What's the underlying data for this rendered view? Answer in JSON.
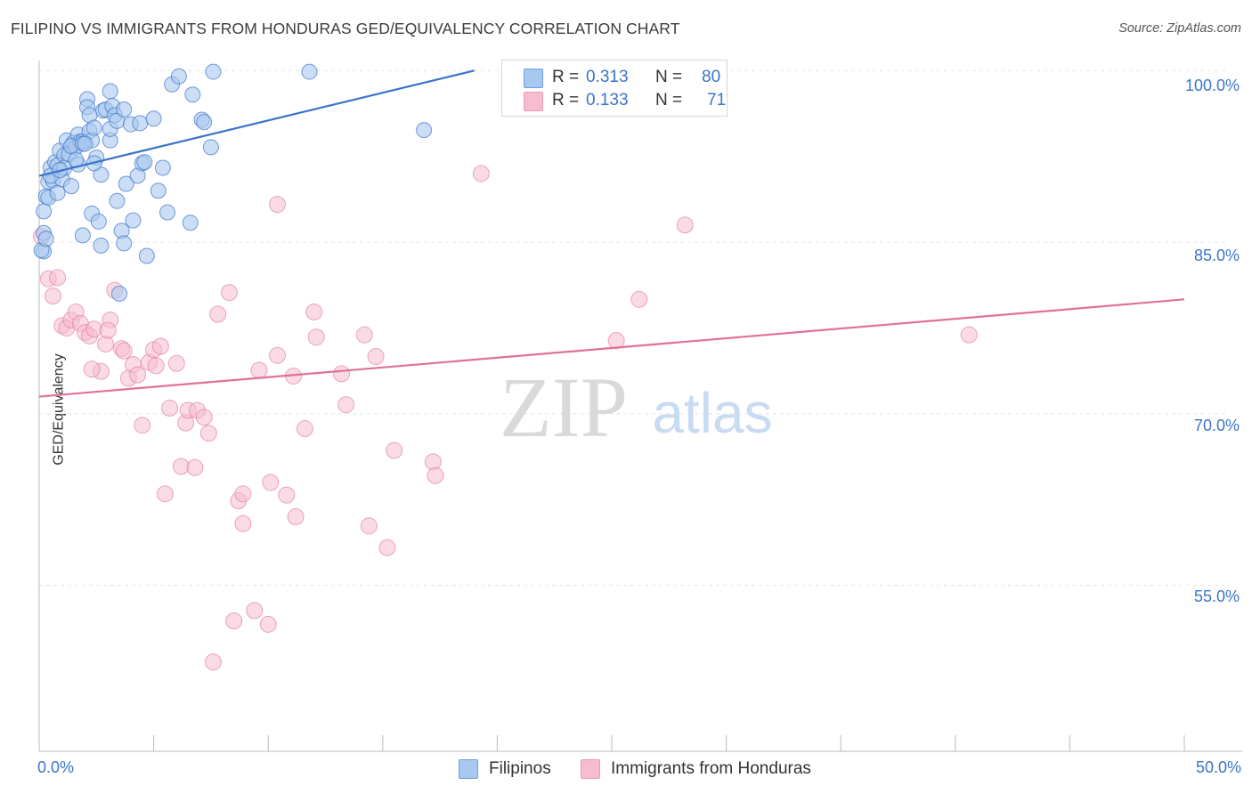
{
  "title": "FILIPINO VS IMMIGRANTS FROM HONDURAS GED/EQUIVALENCY CORRELATION CHART",
  "source": "Source: ZipAtlas.com",
  "watermark": {
    "zip": "ZIP",
    "atlas": "atlas"
  },
  "legend": {
    "blue": {
      "r_label": "R =",
      "r_value": "0.313",
      "n_label": "N =",
      "n_value": "80"
    },
    "pink": {
      "r_label": "R =",
      "r_value": "0.133",
      "n_label": "N =",
      "n_value": "71"
    }
  },
  "bottom_legend": {
    "filipinos": "Filipinos",
    "honduras": "Immigrants from Honduras"
  },
  "colors": {
    "blue": "#3b74c9",
    "blue_fill": "#a9c8ef",
    "pink": "#e0709a",
    "pink_fill": "#f6bcd0",
    "grid": "#e3e3e3"
  },
  "chart_data": {
    "type": "scatter",
    "title": "FILIPINO VS IMMIGRANTS FROM HONDURAS GED/EQUIVALENCY CORRELATION CHART",
    "xlabel": "",
    "ylabel": "GED/Equivalency",
    "xlim": [
      0,
      50
    ],
    "ylim": [
      40.5,
      101.5
    ],
    "x_tick_labels": [
      "0.0%",
      "50.0%"
    ],
    "y_ticks": [
      100,
      85,
      70,
      55
    ],
    "y_tick_labels": [
      "100.0%",
      "85.0%",
      "70.0%",
      "55.0%"
    ],
    "grid": true,
    "legend_position": "top-center",
    "series": [
      {
        "name": "Filipinos",
        "color": "#3b74c9",
        "R": 0.313,
        "N": 80,
        "trend": {
          "x": [
            0,
            19.0
          ],
          "y": [
            90.8,
            100.0
          ]
        },
        "points": [
          [
            0.2,
            85.8
          ],
          [
            0.2,
            87.7
          ],
          [
            0.2,
            84.2
          ],
          [
            0.3,
            89.0
          ],
          [
            0.4,
            90.3
          ],
          [
            0.4,
            88.9
          ],
          [
            0.5,
            91.5
          ],
          [
            0.6,
            90.4
          ],
          [
            0.7,
            92.0
          ],
          [
            0.8,
            89.3
          ],
          [
            0.8,
            91.7
          ],
          [
            0.9,
            93.0
          ],
          [
            1.0,
            90.5
          ],
          [
            1.1,
            92.6
          ],
          [
            1.1,
            91.5
          ],
          [
            1.2,
            93.9
          ],
          [
            1.3,
            92.7
          ],
          [
            1.4,
            89.9
          ],
          [
            1.5,
            93.7
          ],
          [
            1.6,
            93.3
          ],
          [
            1.7,
            94.4
          ],
          [
            1.7,
            91.8
          ],
          [
            1.8,
            93.8
          ],
          [
            1.9,
            93.8
          ],
          [
            1.9,
            85.6
          ],
          [
            2.1,
            97.5
          ],
          [
            2.1,
            96.8
          ],
          [
            2.2,
            94.7
          ],
          [
            2.2,
            96.1
          ],
          [
            2.3,
            87.5
          ],
          [
            2.3,
            93.9
          ],
          [
            2.4,
            95.0
          ],
          [
            2.5,
            92.4
          ],
          [
            2.6,
            86.8
          ],
          [
            2.7,
            84.7
          ],
          [
            2.7,
            90.9
          ],
          [
            2.8,
            96.5
          ],
          [
            2.9,
            96.6
          ],
          [
            3.1,
            98.2
          ],
          [
            3.1,
            93.9
          ],
          [
            3.1,
            94.9
          ],
          [
            3.2,
            96.9
          ],
          [
            3.3,
            96.1
          ],
          [
            3.4,
            95.6
          ],
          [
            3.4,
            88.6
          ],
          [
            3.5,
            80.5
          ],
          [
            3.6,
            86.0
          ],
          [
            3.7,
            84.9
          ],
          [
            3.8,
            90.1
          ],
          [
            4.0,
            95.3
          ],
          [
            4.1,
            86.9
          ],
          [
            4.3,
            90.8
          ],
          [
            4.4,
            95.4
          ],
          [
            4.5,
            91.9
          ],
          [
            4.6,
            92.0
          ],
          [
            4.7,
            83.8
          ],
          [
            5.0,
            95.8
          ],
          [
            5.2,
            89.5
          ],
          [
            5.4,
            91.5
          ],
          [
            5.6,
            87.6
          ],
          [
            5.8,
            98.8
          ],
          [
            6.1,
            99.5
          ],
          [
            6.6,
            86.7
          ],
          [
            6.7,
            97.9
          ],
          [
            7.1,
            95.7
          ],
          [
            7.2,
            95.5
          ],
          [
            7.5,
            93.3
          ],
          [
            7.6,
            99.9
          ],
          [
            11.8,
            99.9
          ],
          [
            16.8,
            94.8
          ],
          [
            0.1,
            84.3
          ],
          [
            0.3,
            85.3
          ],
          [
            0.5,
            90.8
          ],
          [
            1.4,
            93.4
          ],
          [
            1.9,
            93.6
          ],
          [
            2.4,
            91.9
          ],
          [
            0.9,
            91.3
          ],
          [
            3.7,
            96.6
          ],
          [
            1.6,
            92.2
          ],
          [
            2.0,
            93.6
          ]
        ]
      },
      {
        "name": "Immigrants from Honduras",
        "color": "#e0709a",
        "R": 0.133,
        "N": 71,
        "trend": {
          "x": [
            0,
            50
          ],
          "y": [
            71.5,
            80.0
          ]
        },
        "points": [
          [
            0.1,
            85.5
          ],
          [
            0.4,
            81.8
          ],
          [
            0.6,
            80.3
          ],
          [
            0.8,
            81.9
          ],
          [
            1.0,
            77.7
          ],
          [
            1.2,
            77.5
          ],
          [
            1.4,
            78.2
          ],
          [
            1.6,
            78.9
          ],
          [
            1.8,
            77.9
          ],
          [
            2.0,
            77.1
          ],
          [
            2.2,
            76.8
          ],
          [
            2.4,
            77.4
          ],
          [
            2.7,
            73.7
          ],
          [
            2.9,
            76.1
          ],
          [
            3.1,
            78.2
          ],
          [
            3.3,
            80.8
          ],
          [
            3.6,
            75.7
          ],
          [
            3.7,
            75.5
          ],
          [
            3.9,
            73.1
          ],
          [
            4.1,
            74.3
          ],
          [
            4.3,
            73.4
          ],
          [
            4.5,
            69.0
          ],
          [
            4.8,
            74.5
          ],
          [
            5.0,
            75.6
          ],
          [
            5.1,
            74.2
          ],
          [
            5.3,
            75.9
          ],
          [
            5.5,
            63.0
          ],
          [
            5.7,
            70.5
          ],
          [
            6.0,
            74.4
          ],
          [
            6.2,
            65.4
          ],
          [
            6.4,
            69.2
          ],
          [
            6.5,
            70.3
          ],
          [
            6.8,
            65.3
          ],
          [
            6.9,
            70.3
          ],
          [
            7.2,
            69.7
          ],
          [
            7.4,
            68.3
          ],
          [
            7.6,
            48.3
          ],
          [
            7.8,
            78.7
          ],
          [
            8.3,
            80.6
          ],
          [
            8.5,
            51.9
          ],
          [
            8.7,
            62.4
          ],
          [
            8.9,
            63.0
          ],
          [
            8.9,
            60.4
          ],
          [
            9.4,
            52.8
          ],
          [
            9.6,
            73.8
          ],
          [
            10.0,
            51.6
          ],
          [
            10.1,
            64.0
          ],
          [
            10.4,
            75.1
          ],
          [
            10.8,
            62.9
          ],
          [
            11.1,
            73.3
          ],
          [
            11.2,
            61.0
          ],
          [
            11.6,
            68.7
          ],
          [
            12.0,
            78.9
          ],
          [
            12.1,
            76.7
          ],
          [
            13.2,
            73.5
          ],
          [
            13.4,
            70.8
          ],
          [
            14.2,
            76.9
          ],
          [
            14.4,
            60.2
          ],
          [
            14.7,
            75.0
          ],
          [
            15.2,
            58.3
          ],
          [
            15.5,
            66.8
          ],
          [
            17.2,
            65.8
          ],
          [
            17.3,
            64.6
          ],
          [
            19.3,
            91.0
          ],
          [
            25.2,
            76.4
          ],
          [
            26.2,
            80.0
          ],
          [
            28.2,
            86.5
          ],
          [
            40.6,
            76.9
          ],
          [
            10.4,
            88.3
          ],
          [
            2.3,
            73.9
          ],
          [
            3.0,
            77.3
          ]
        ]
      }
    ]
  }
}
